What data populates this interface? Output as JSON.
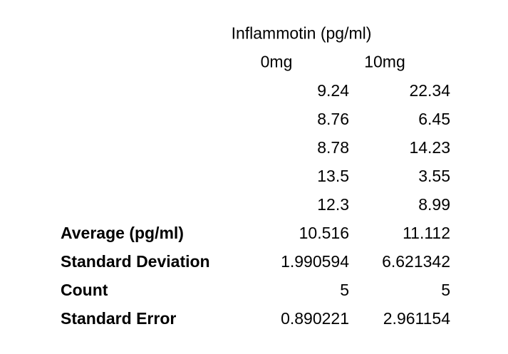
{
  "title": "Inflammotin (pg/ml)",
  "columns": [
    "0mg",
    "10mg"
  ],
  "measurements": [
    [
      "9.24",
      "22.34"
    ],
    [
      "8.76",
      "6.45"
    ],
    [
      "8.78",
      "14.23"
    ],
    [
      "13.5",
      "3.55"
    ],
    [
      "12.3",
      "8.99"
    ]
  ],
  "stats": [
    {
      "label": "Average (pg/ml)",
      "values": [
        "10.516",
        "11.112"
      ]
    },
    {
      "label": "Standard Deviation",
      "values": [
        "1.990594",
        "6.621342"
      ]
    },
    {
      "label": "Count",
      "values": [
        "5",
        "5"
      ]
    },
    {
      "label": "Standard Error",
      "values": [
        "0.890221",
        "2.961154"
      ]
    }
  ],
  "colors": {
    "background": "#ffffff",
    "text": "#000000"
  }
}
